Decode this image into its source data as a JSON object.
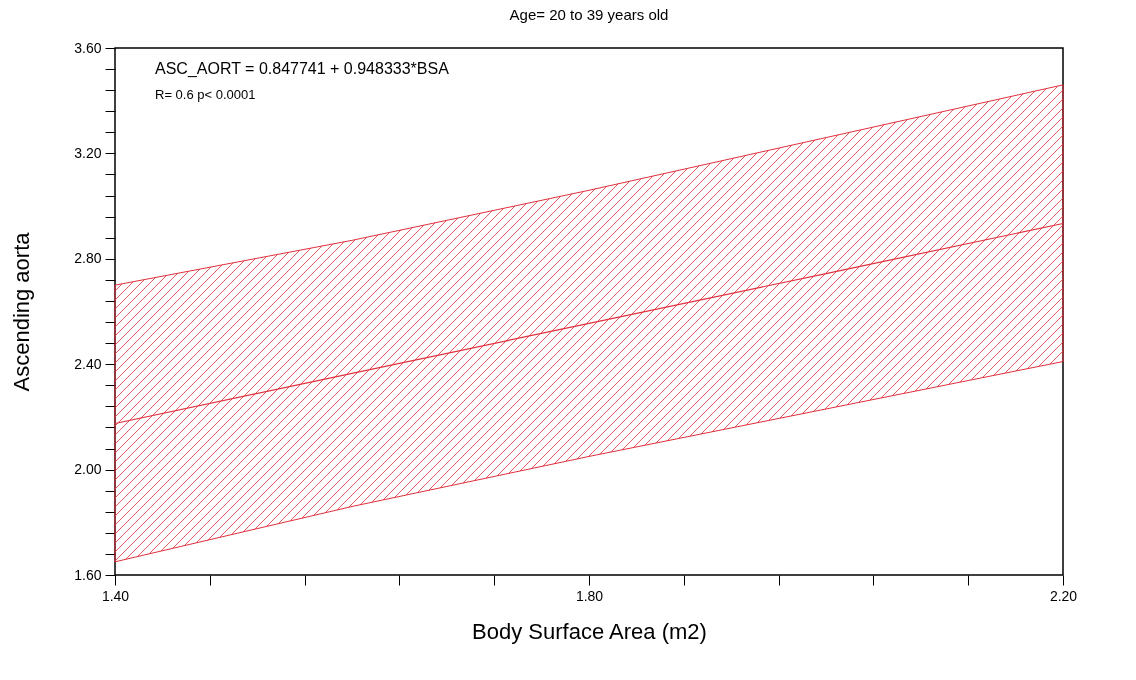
{
  "chart_data": {
    "type": "line",
    "title": "Age= 20 to 39 years old",
    "xlabel": "Body Surface Area (m2)",
    "ylabel": "Ascending aorta",
    "annotations": [
      "ASC_AORT =   0.847741 +  0.948333*BSA",
      "R=  0.6   p<  0.0001"
    ],
    "x": [
      1.4,
      1.6,
      1.8,
      2.0,
      2.2
    ],
    "series": [
      {
        "color": "#e0303c",
        "values": [
          2.175,
          2.365,
          2.555,
          2.744,
          2.934
        ],
        "lower": [
          1.65,
          1.86,
          2.05,
          2.23,
          2.41
        ],
        "upper": [
          2.7,
          2.87,
          3.06,
          3.26,
          3.46
        ]
      }
    ],
    "xlim": [
      1.4,
      2.2
    ],
    "ylim": [
      1.6,
      3.6
    ],
    "xticks": [
      {
        "value": 1.4,
        "label": "1.40"
      },
      {
        "value": 1.48,
        "label": null
      },
      {
        "value": 1.56,
        "label": null
      },
      {
        "value": 1.64,
        "label": null
      },
      {
        "value": 1.72,
        "label": null
      },
      {
        "value": 1.8,
        "label": "1.80"
      },
      {
        "value": 1.88,
        "label": null
      },
      {
        "value": 1.96,
        "label": null
      },
      {
        "value": 2.04,
        "label": null
      },
      {
        "value": 2.12,
        "label": null
      },
      {
        "value": 2.2,
        "label": "2.20"
      }
    ],
    "yticks": [
      {
        "value": 1.6,
        "label": "1.60"
      },
      {
        "value": 1.68,
        "label": null
      },
      {
        "value": 1.76,
        "label": null
      },
      {
        "value": 1.84,
        "label": null
      },
      {
        "value": 1.92,
        "label": null
      },
      {
        "value": 2.0,
        "label": "2.00"
      },
      {
        "value": 2.08,
        "label": null
      },
      {
        "value": 2.16,
        "label": null
      },
      {
        "value": 2.24,
        "label": null
      },
      {
        "value": 2.32,
        "label": null
      },
      {
        "value": 2.4,
        "label": "2.40"
      },
      {
        "value": 2.48,
        "label": null
      },
      {
        "value": 2.56,
        "label": null
      },
      {
        "value": 2.64,
        "label": null
      },
      {
        "value": 2.72,
        "label": null
      },
      {
        "value": 2.8,
        "label": "2.80"
      },
      {
        "value": 2.88,
        "label": null
      },
      {
        "value": 2.96,
        "label": null
      },
      {
        "value": 3.04,
        "label": null
      },
      {
        "value": 3.12,
        "label": null
      },
      {
        "value": 3.2,
        "label": "3.20"
      },
      {
        "value": 3.28,
        "label": null
      },
      {
        "value": 3.36,
        "label": null
      },
      {
        "value": 3.44,
        "label": null
      },
      {
        "value": 3.52,
        "label": null
      },
      {
        "value": 3.6,
        "label": "3.60"
      }
    ],
    "grid": false,
    "marker": "none",
    "line_style": "solid"
  }
}
